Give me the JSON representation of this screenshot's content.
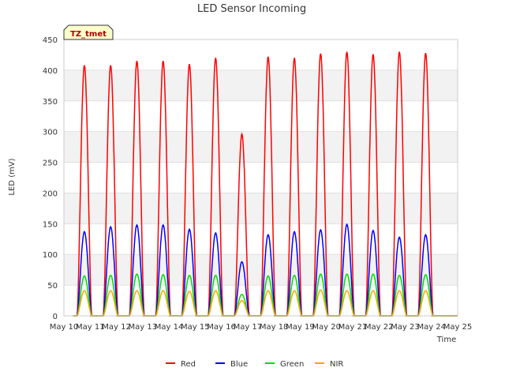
{
  "chart_data": {
    "type": "line",
    "title": "LED Sensor Incoming",
    "xlabel": "Time",
    "ylabel": "LED (mV)",
    "site_label": "TZ_tmet",
    "ylim": [
      0,
      450
    ],
    "xlim": [
      10,
      25
    ],
    "yticks": [
      0,
      50,
      100,
      150,
      200,
      250,
      300,
      350,
      400,
      450
    ],
    "xticks": [
      10,
      11,
      12,
      13,
      14,
      15,
      16,
      17,
      18,
      19,
      20,
      21,
      22,
      23,
      24,
      25
    ],
    "xtick_labels": [
      "May 10",
      "May 11",
      "May 12",
      "May 13",
      "May 14",
      "May 15",
      "May 16",
      "May 17",
      "May 18",
      "May 19",
      "May 20",
      "May 21",
      "May 22",
      "May 23",
      "May 24",
      "May 25"
    ],
    "background_bands": "alternating light gray",
    "day_centers": [
      10.78,
      11.78,
      12.78,
      13.78,
      14.78,
      15.78,
      16.78,
      17.78,
      18.78,
      19.78,
      20.78,
      21.78,
      22.78,
      23.78
    ],
    "day_half_width": 0.28,
    "series": [
      {
        "name": "Red",
        "color": "#ff0000",
        "daily_peaks": [
          408,
          408,
          415,
          415,
          410,
          420,
          296,
          422,
          420,
          427,
          430,
          426,
          430,
          428
        ]
      },
      {
        "name": "Blue",
        "color": "#0000ff",
        "daily_peaks": [
          137,
          145,
          148,
          148,
          141,
          135,
          88,
          132,
          137,
          140,
          149,
          139,
          128,
          132
        ]
      },
      {
        "name": "Green",
        "color": "#00dd00",
        "daily_peaks": [
          65,
          66,
          68,
          67,
          66,
          66,
          35,
          65,
          66,
          68,
          68,
          68,
          66,
          67
        ]
      },
      {
        "name": "NIR",
        "color": "#ffa500",
        "daily_peaks": [
          41,
          41,
          41,
          41,
          40,
          41,
          25,
          41,
          41,
          42,
          41,
          41,
          41,
          41
        ]
      }
    ]
  }
}
